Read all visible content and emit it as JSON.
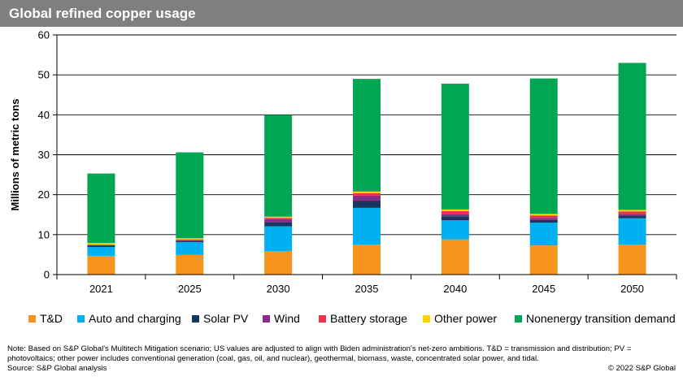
{
  "header": {
    "title": "Global refined copper usage"
  },
  "chart_data": {
    "type": "bar",
    "stacked": true,
    "ylabel": "Millions of metric tons",
    "xlabel": "",
    "ylim": [
      0,
      60
    ],
    "yticks": [
      0,
      10,
      20,
      30,
      40,
      50,
      60
    ],
    "grid": true,
    "legend_position": "bottom",
    "categories": [
      "2021",
      "2025",
      "2030",
      "2035",
      "2040",
      "2045",
      "2050"
    ],
    "series": [
      {
        "name": "T&D",
        "color": "#f7941d",
        "values": [
          4.7,
          4.9,
          5.9,
          7.5,
          8.8,
          7.3,
          7.5
        ]
      },
      {
        "name": "Auto and charging",
        "color": "#00b0f0",
        "values": [
          2.2,
          3.2,
          6.2,
          9.2,
          4.8,
          5.7,
          6.6
        ]
      },
      {
        "name": "Solar PV",
        "color": "#17375e",
        "values": [
          0.4,
          0.3,
          1.0,
          1.8,
          1.0,
          0.7,
          0.7
        ]
      },
      {
        "name": "Wind",
        "color": "#8b2c8b",
        "values": [
          0.1,
          0.3,
          0.8,
          1.3,
          0.6,
          0.5,
          0.4
        ]
      },
      {
        "name": "Battery storage",
        "color": "#e8334a",
        "values": [
          0.1,
          0.1,
          0.3,
          0.6,
          0.7,
          0.6,
          0.6
        ]
      },
      {
        "name": "Other power",
        "color": "#ffd200",
        "values": [
          0.4,
          0.3,
          0.3,
          0.4,
          0.4,
          0.4,
          0.4
        ]
      },
      {
        "name": "Nonenergy transition demand",
        "color": "#00a651",
        "values": [
          17.4,
          21.5,
          25.5,
          28.2,
          31.5,
          33.9,
          36.8
        ]
      }
    ]
  },
  "footer": {
    "note": "Note: Based on S&P Global's Multitech Mitigation scenario; US values are adjusted to align with Biden administration's net-zero ambitions. T&D = transmission and distribution; PV = photovoltaics; other power includes conventional generation (coal, gas, oil, and nuclear), geothermal, biomass, waste, concentrated solar power, and tidal.",
    "source": "Source: S&P Global analysis",
    "copyright": "© 2022 S&P Global"
  }
}
